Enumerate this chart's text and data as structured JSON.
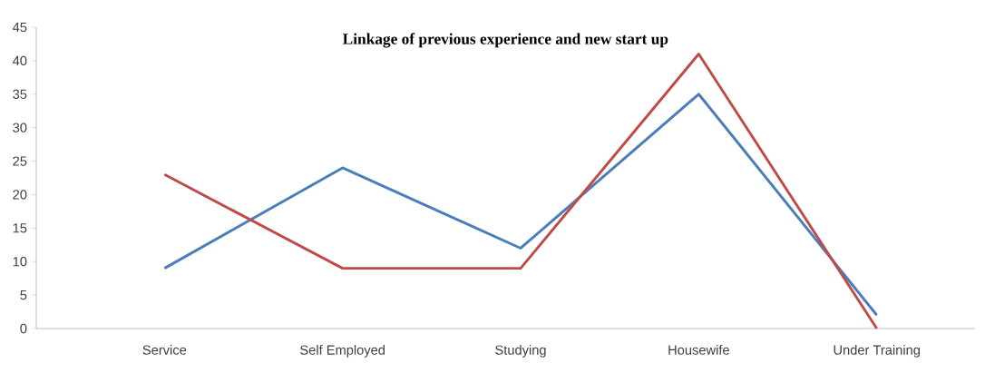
{
  "chart_data": {
    "type": "line",
    "title": "Linkage of previous experience and new start up",
    "categories": [
      "Service",
      "Self Employed",
      "Studying",
      "Housewife",
      "Under Training"
    ],
    "series": [
      {
        "color": "#4a7ebb",
        "values": [
          9,
          24,
          12,
          35,
          2
        ]
      },
      {
        "color": "#be4b48",
        "values": [
          23,
          9,
          9,
          41,
          0
        ]
      }
    ],
    "ylim": [
      0,
      45
    ],
    "yticks": [
      0,
      5,
      10,
      15,
      20,
      25,
      30,
      35,
      40,
      45
    ],
    "grid": false,
    "marker": "none",
    "line_style": "solid"
  }
}
